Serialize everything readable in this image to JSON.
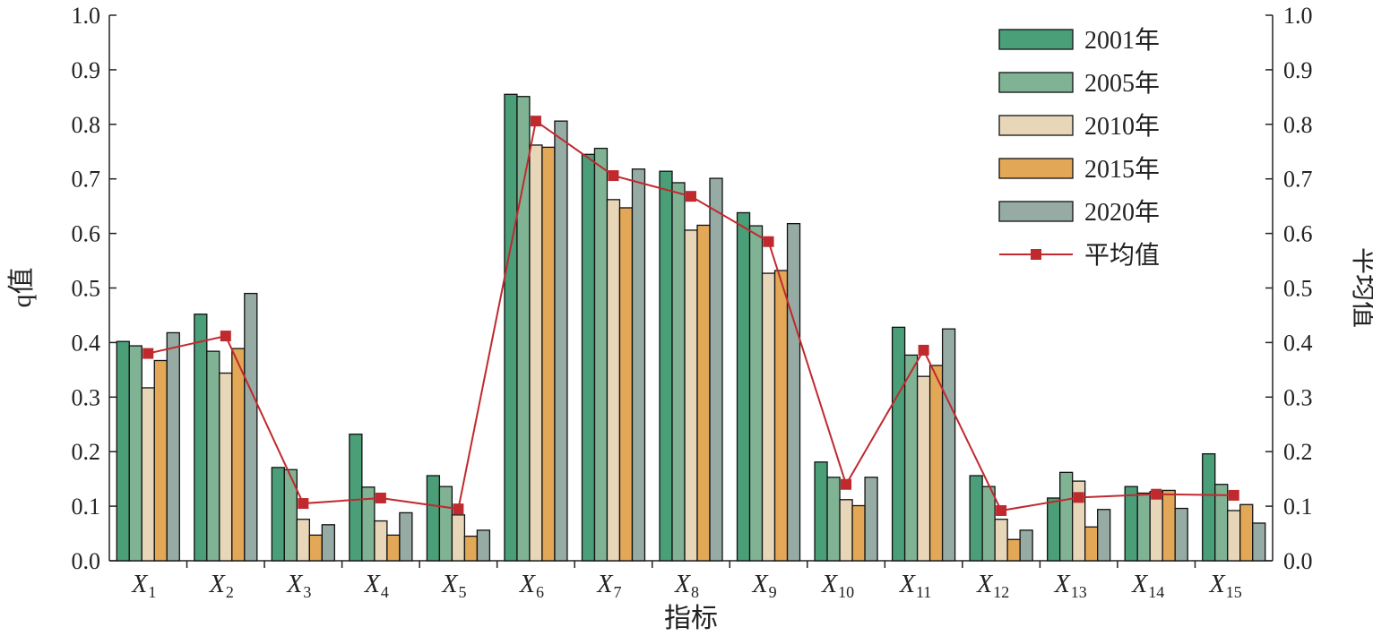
{
  "chart_data": {
    "type": "bar",
    "xlabel": "指标",
    "ylabel_left": "q值",
    "ylabel_right": "平均值",
    "ylim": [
      0,
      1.0
    ],
    "yticks": [
      "0.0",
      "0.1",
      "0.2",
      "0.3",
      "0.4",
      "0.5",
      "0.6",
      "0.7",
      "0.8",
      "0.9",
      "1.0"
    ],
    "categories": [
      {
        "main": "X",
        "sub": "1"
      },
      {
        "main": "X",
        "sub": "2"
      },
      {
        "main": "X",
        "sub": "3"
      },
      {
        "main": "X",
        "sub": "4"
      },
      {
        "main": "X",
        "sub": "5"
      },
      {
        "main": "X",
        "sub": "6"
      },
      {
        "main": "X",
        "sub": "7"
      },
      {
        "main": "X",
        "sub": "8"
      },
      {
        "main": "X",
        "sub": "9"
      },
      {
        "main": "X",
        "sub": "10"
      },
      {
        "main": "X",
        "sub": "11"
      },
      {
        "main": "X",
        "sub": "12"
      },
      {
        "main": "X",
        "sub": "13"
      },
      {
        "main": "X",
        "sub": "14"
      },
      {
        "main": "X",
        "sub": "15"
      }
    ],
    "series": [
      {
        "name": "2001年",
        "color": "#4a9e78",
        "values": [
          0.402,
          0.452,
          0.171,
          0.232,
          0.156,
          0.855,
          0.745,
          0.714,
          0.638,
          0.181,
          0.428,
          0.156,
          0.115,
          0.136,
          0.196
        ]
      },
      {
        "name": "2005年",
        "color": "#7fb393",
        "values": [
          0.394,
          0.384,
          0.167,
          0.135,
          0.136,
          0.851,
          0.756,
          0.693,
          0.614,
          0.153,
          0.377,
          0.136,
          0.162,
          0.124,
          0.14
        ]
      },
      {
        "name": "2010年",
        "color": "#e8d6b8",
        "values": [
          0.317,
          0.344,
          0.076,
          0.073,
          0.084,
          0.762,
          0.662,
          0.606,
          0.527,
          0.112,
          0.338,
          0.076,
          0.146,
          0.127,
          0.092
        ]
      },
      {
        "name": "2015年",
        "color": "#e3a857",
        "values": [
          0.367,
          0.389,
          0.047,
          0.047,
          0.045,
          0.758,
          0.647,
          0.615,
          0.532,
          0.101,
          0.358,
          0.039,
          0.062,
          0.129,
          0.103
        ]
      },
      {
        "name": "2020年",
        "color": "#96aba4",
        "values": [
          0.418,
          0.49,
          0.066,
          0.088,
          0.056,
          0.806,
          0.718,
          0.701,
          0.618,
          0.153,
          0.425,
          0.056,
          0.094,
          0.096,
          0.069
        ]
      }
    ],
    "line_series": {
      "name": "平均值",
      "color": "#c0292e",
      "values": [
        0.38,
        0.412,
        0.105,
        0.115,
        0.095,
        0.806,
        0.706,
        0.668,
        0.585,
        0.14,
        0.386,
        0.092,
        0.116,
        0.122,
        0.12
      ]
    },
    "legend_position": "top-right",
    "grid": false
  }
}
